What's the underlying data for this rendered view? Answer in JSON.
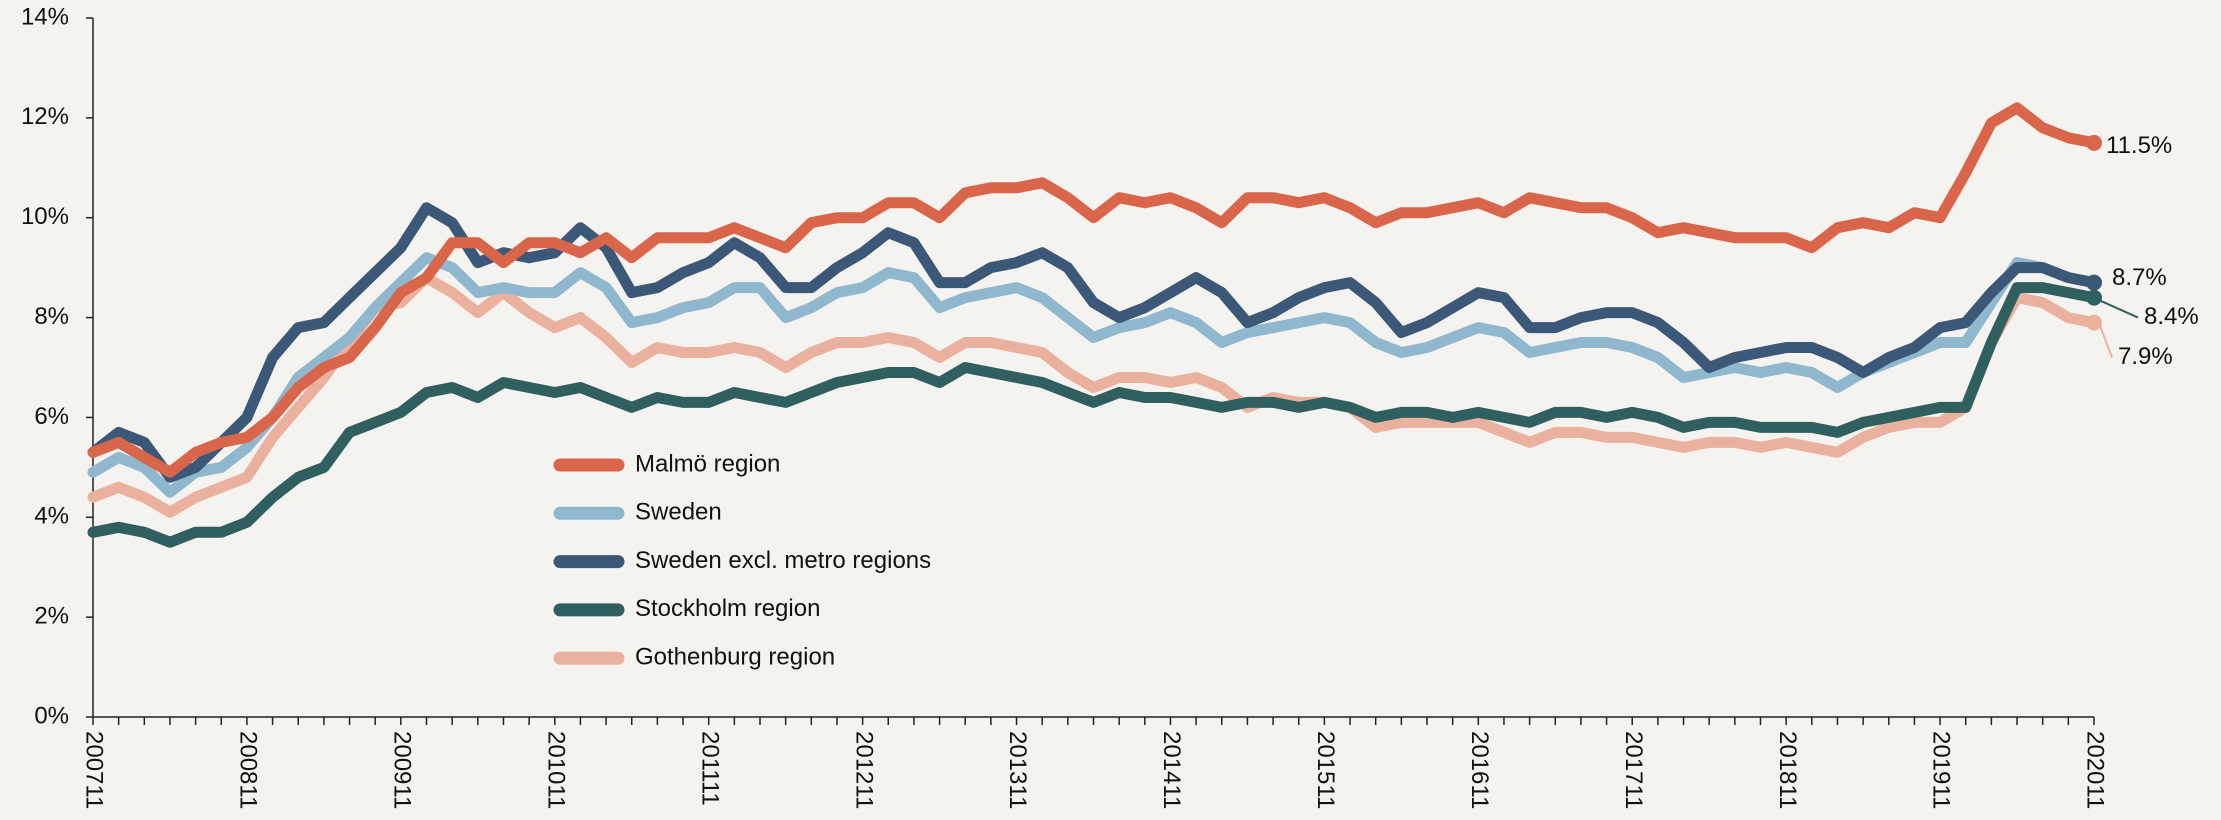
{
  "chart_data": {
    "type": "line",
    "categories": [
      "200711",
      null,
      null,
      null,
      null,
      null,
      "200811",
      null,
      null,
      null,
      null,
      null,
      "200911",
      null,
      null,
      null,
      null,
      null,
      "201011",
      null,
      null,
      null,
      null,
      null,
      "201111",
      null,
      null,
      null,
      null,
      null,
      "201211",
      null,
      null,
      null,
      null,
      null,
      "201311",
      null,
      null,
      null,
      null,
      null,
      "201411",
      null,
      null,
      null,
      null,
      null,
      "201511",
      null,
      null,
      null,
      null,
      null,
      "201611",
      null,
      null,
      null,
      null,
      null,
      "201711",
      null,
      null,
      null,
      null,
      null,
      "201811",
      null,
      null,
      null,
      null,
      null,
      "201911",
      null,
      null,
      null,
      null,
      null,
      "202011"
    ],
    "ylim": [
      0,
      14
    ],
    "yticks": [
      {
        "value": 0,
        "label": "0%"
      },
      {
        "value": 2,
        "label": "2%"
      },
      {
        "value": 4,
        "label": "4%"
      },
      {
        "value": 6,
        "label": "6%"
      },
      {
        "value": 8,
        "label": "8%"
      },
      {
        "value": 10,
        "label": "10%"
      },
      {
        "value": 12,
        "label": "12%"
      },
      {
        "value": 14,
        "label": "14%"
      }
    ],
    "series": [
      {
        "name": "Malmö region",
        "color": "#d9664a",
        "end_label": "11.5%",
        "values": [
          5.3,
          5.5,
          5.2,
          4.9,
          5.3,
          5.5,
          5.6,
          6.0,
          6.6,
          7.0,
          7.2,
          7.8,
          8.5,
          8.8,
          9.5,
          9.5,
          9.1,
          9.5,
          9.5,
          9.3,
          9.6,
          9.2,
          9.6,
          9.6,
          9.6,
          9.8,
          9.6,
          9.4,
          9.9,
          10.0,
          10.0,
          10.3,
          10.3,
          10.0,
          10.5,
          10.6,
          10.6,
          10.7,
          10.4,
          10.0,
          10.4,
          10.3,
          10.4,
          10.2,
          9.9,
          10.4,
          10.4,
          10.3,
          10.4,
          10.2,
          9.9,
          10.1,
          10.1,
          10.2,
          10.3,
          10.1,
          10.4,
          10.3,
          10.2,
          10.2,
          10.0,
          9.7,
          9.8,
          9.7,
          9.6,
          9.6,
          9.6,
          9.4,
          9.8,
          9.9,
          9.8,
          10.1,
          10.0,
          10.9,
          11.9,
          12.2,
          11.8,
          11.6,
          11.5
        ]
      },
      {
        "name": "Sweden",
        "color": "#8fb8cf",
        "values": [
          4.9,
          5.2,
          5.0,
          4.5,
          4.9,
          5.0,
          5.4,
          6.0,
          6.8,
          7.2,
          7.6,
          8.2,
          8.7,
          9.2,
          9.0,
          8.5,
          8.6,
          8.5,
          8.5,
          8.9,
          8.6,
          7.9,
          8.0,
          8.2,
          8.3,
          8.6,
          8.6,
          8.0,
          8.2,
          8.5,
          8.6,
          8.9,
          8.8,
          8.2,
          8.4,
          8.5,
          8.6,
          8.4,
          8.0,
          7.6,
          7.8,
          7.9,
          8.1,
          7.9,
          7.5,
          7.7,
          7.8,
          7.9,
          8.0,
          7.9,
          7.5,
          7.3,
          7.4,
          7.6,
          7.8,
          7.7,
          7.3,
          7.4,
          7.5,
          7.5,
          7.4,
          7.2,
          6.8,
          6.9,
          7.0,
          6.9,
          7.0,
          6.9,
          6.6,
          6.9,
          7.1,
          7.3,
          7.5,
          7.5,
          8.3,
          9.1,
          9.0,
          8.8,
          8.7
        ]
      },
      {
        "name": "Sweden excl. metro regions",
        "color": "#3b5878",
        "end_label": "8.7%",
        "values": [
          5.3,
          5.7,
          5.5,
          4.8,
          5.0,
          5.5,
          6.0,
          7.2,
          7.8,
          7.9,
          8.4,
          8.9,
          9.4,
          10.2,
          9.9,
          9.1,
          9.3,
          9.2,
          9.3,
          9.8,
          9.4,
          8.5,
          8.6,
          8.9,
          9.1,
          9.5,
          9.2,
          8.6,
          8.6,
          9.0,
          9.3,
          9.7,
          9.5,
          8.7,
          8.7,
          9.0,
          9.1,
          9.3,
          9.0,
          8.3,
          8.0,
          8.2,
          8.5,
          8.8,
          8.5,
          7.9,
          8.1,
          8.4,
          8.6,
          8.7,
          8.3,
          7.7,
          7.9,
          8.2,
          8.5,
          8.4,
          7.8,
          7.8,
          8.0,
          8.1,
          8.1,
          7.9,
          7.5,
          7.0,
          7.2,
          7.3,
          7.4,
          7.4,
          7.2,
          6.9,
          7.2,
          7.4,
          7.8,
          7.9,
          8.5,
          9.0,
          9.0,
          8.8,
          8.7
        ]
      },
      {
        "name": "Stockholm region",
        "color": "#2f5f5f",
        "end_label": "8.4%",
        "values": [
          3.7,
          3.8,
          3.7,
          3.5,
          3.7,
          3.7,
          3.9,
          4.4,
          4.8,
          5.0,
          5.7,
          5.9,
          6.1,
          6.5,
          6.6,
          6.4,
          6.7,
          6.6,
          6.5,
          6.6,
          6.4,
          6.2,
          6.4,
          6.3,
          6.3,
          6.5,
          6.4,
          6.3,
          6.5,
          6.7,
          6.8,
          6.9,
          6.9,
          6.7,
          7.0,
          6.9,
          6.8,
          6.7,
          6.5,
          6.3,
          6.5,
          6.4,
          6.4,
          6.3,
          6.2,
          6.3,
          6.3,
          6.2,
          6.3,
          6.2,
          6.0,
          6.1,
          6.1,
          6.0,
          6.1,
          6.0,
          5.9,
          6.1,
          6.1,
          6.0,
          6.1,
          6.0,
          5.8,
          5.9,
          5.9,
          5.8,
          5.8,
          5.8,
          5.7,
          5.9,
          6.0,
          6.1,
          6.2,
          6.2,
          7.5,
          8.6,
          8.6,
          8.5,
          8.4
        ]
      },
      {
        "name": "Gothenburg region",
        "color": "#eab19e",
        "end_label": "7.9%",
        "values": [
          4.4,
          4.6,
          4.4,
          4.1,
          4.4,
          4.6,
          4.8,
          5.6,
          6.2,
          6.8,
          7.5,
          8.2,
          8.3,
          8.8,
          8.5,
          8.1,
          8.5,
          8.1,
          7.8,
          8.0,
          7.6,
          7.1,
          7.4,
          7.3,
          7.3,
          7.4,
          7.3,
          7.0,
          7.3,
          7.5,
          7.5,
          7.6,
          7.5,
          7.2,
          7.5,
          7.5,
          7.4,
          7.3,
          6.9,
          6.6,
          6.8,
          6.8,
          6.7,
          6.8,
          6.6,
          6.2,
          6.4,
          6.3,
          6.3,
          6.2,
          5.8,
          5.9,
          5.9,
          5.9,
          5.9,
          5.7,
          5.5,
          5.7,
          5.7,
          5.6,
          5.6,
          5.5,
          5.4,
          5.5,
          5.5,
          5.4,
          5.5,
          5.4,
          5.3,
          5.6,
          5.8,
          5.9,
          5.9,
          6.2,
          7.5,
          8.4,
          8.3,
          8.0,
          7.9
        ]
      }
    ]
  }
}
